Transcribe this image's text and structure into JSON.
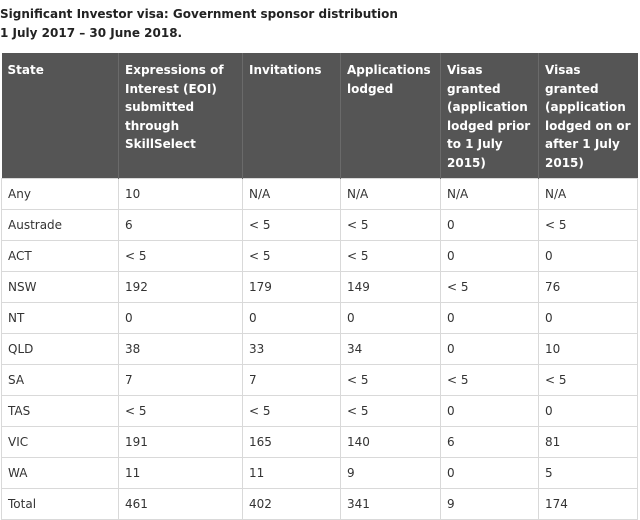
{
  "caption": {
    "line1": "Significant Investor visa: Government sponsor distribution",
    "line2": "1 July 2017 – 30 June 2018."
  },
  "table": {
    "headers": [
      "State",
      "Expressions of Interest (EOI) submitted through SkillSelect",
      "Invitations",
      "Applications lodged",
      "Visas granted (application lodged prior to 1 July 2015)",
      "Visas granted (application lodged on or after 1 July 2015)"
    ],
    "rows": [
      [
        "Any",
        "10",
        "N/A",
        "N/A",
        "N/A",
        "N/A"
      ],
      [
        "Austrade",
        "6",
        "< 5",
        "< 5",
        "0",
        "< 5"
      ],
      [
        "ACT",
        "< 5",
        "< 5",
        "< 5",
        "0",
        "0"
      ],
      [
        "NSW",
        "192",
        "179",
        "149",
        "< 5",
        "76"
      ],
      [
        "NT",
        "0",
        "0",
        "0",
        "0",
        "0"
      ],
      [
        "QLD",
        "38",
        "33",
        "34",
        "0",
        "10"
      ],
      [
        "SA",
        "7",
        "7",
        "< 5",
        "< 5",
        "< 5"
      ],
      [
        "TAS",
        "< 5",
        "< 5",
        "< 5",
        "0",
        "0"
      ],
      [
        "VIC",
        "191",
        "165",
        "140",
        "6",
        "81"
      ],
      [
        "WA",
        "11",
        "11",
        "9",
        "0",
        "5"
      ],
      [
        "Total",
        "461",
        "402",
        "341",
        "9",
        "174"
      ]
    ]
  },
  "colors": {
    "header_bg": "#555555",
    "header_text": "#ffffff",
    "border": "#d9d9d9",
    "text": "#333333"
  }
}
